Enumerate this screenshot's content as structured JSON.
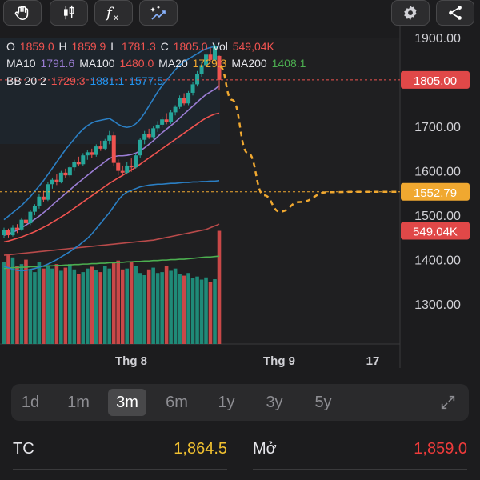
{
  "toolbar": {
    "left_icons": [
      "hand-icon",
      "candlestick-icon",
      "function-icon",
      "magic-draw-icon"
    ],
    "right_icons": [
      "gear-icon",
      "share-icon"
    ]
  },
  "ohlc": {
    "o_label": "O",
    "o_value": "1859.0",
    "h_label": "H",
    "h_value": "1859.9",
    "l_label": "L",
    "l_value": "1781.3",
    "c_label": "C",
    "c_value": "1805.0",
    "vol_label": "Vol",
    "vol_value": "549,04K"
  },
  "ma": {
    "ma10_label": "MA10",
    "ma10_value": "1791.6",
    "ma100_label": "MA100",
    "ma100_value": "1480.0",
    "ma20_label": "MA20",
    "ma20_value": "1729.3",
    "ma200_label": "MA200",
    "ma200_value": "1408.1"
  },
  "bb": {
    "label": "BB 20 2",
    "v1": "1729.3",
    "v2": "1881.1",
    "v3": "1577.5"
  },
  "colors": {
    "up": "#26a69a",
    "down": "#ef5350",
    "ma10": "#9b7dd4",
    "ma100": "#ef5350",
    "ma20": "#f0a830",
    "ma200": "#4caf50",
    "bb_upper": "#2196f3",
    "forecast": "#f0a830"
  },
  "chart_data": {
    "type": "candlestick",
    "y_tick_labels": [
      "1900.00",
      "1800.00",
      "1700.00",
      "1600.00",
      "1500.00",
      "1400.00",
      "1300.00"
    ],
    "y_ticks": [
      1900,
      1800,
      1700,
      1600,
      1500,
      1400,
      1300
    ],
    "ylim": [
      1210,
      1985
    ],
    "x_tick_labels": [
      "Thg 8",
      "Thg 9",
      "17"
    ],
    "price_badge": "1805.00",
    "price_value": 1805,
    "forecast_badge": "1552.79",
    "forecast_value": 1552.79,
    "volume_badge": "549.04K",
    "volume_badge_value": 1465,
    "candles": [
      [
        1455,
        1472,
        1448,
        1466
      ],
      [
        1466,
        1470,
        1450,
        1455
      ],
      [
        1455,
        1478,
        1452,
        1472
      ],
      [
        1472,
        1480,
        1460,
        1468
      ],
      [
        1468,
        1495,
        1465,
        1490
      ],
      [
        1490,
        1500,
        1478,
        1482
      ],
      [
        1482,
        1512,
        1478,
        1508
      ],
      [
        1508,
        1525,
        1500,
        1520
      ],
      [
        1520,
        1548,
        1515,
        1542
      ],
      [
        1542,
        1555,
        1530,
        1535
      ],
      [
        1535,
        1575,
        1532,
        1570
      ],
      [
        1570,
        1585,
        1560,
        1580
      ],
      [
        1580,
        1592,
        1568,
        1575
      ],
      [
        1575,
        1600,
        1572,
        1596
      ],
      [
        1596,
        1605,
        1585,
        1590
      ],
      [
        1590,
        1612,
        1586,
        1608
      ],
      [
        1608,
        1625,
        1600,
        1620
      ],
      [
        1620,
        1632,
        1610,
        1615
      ],
      [
        1615,
        1640,
        1612,
        1635
      ],
      [
        1635,
        1648,
        1625,
        1642
      ],
      [
        1642,
        1650,
        1630,
        1636
      ],
      [
        1636,
        1660,
        1632,
        1655
      ],
      [
        1655,
        1668,
        1645,
        1650
      ],
      [
        1650,
        1672,
        1646,
        1668
      ],
      [
        1668,
        1690,
        1660,
        1680
      ],
      [
        1680,
        1688,
        1612,
        1618
      ],
      [
        1618,
        1626,
        1590,
        1600
      ],
      [
        1600,
        1612,
        1588,
        1596
      ],
      [
        1596,
        1620,
        1592,
        1612
      ],
      [
        1612,
        1628,
        1598,
        1608
      ],
      [
        1608,
        1640,
        1605,
        1635
      ],
      [
        1635,
        1675,
        1630,
        1670
      ],
      [
        1670,
        1690,
        1660,
        1684
      ],
      [
        1684,
        1695,
        1672,
        1676
      ],
      [
        1676,
        1700,
        1672,
        1696
      ],
      [
        1696,
        1712,
        1688,
        1704
      ],
      [
        1704,
        1722,
        1698,
        1716
      ],
      [
        1716,
        1730,
        1705,
        1710
      ],
      [
        1710,
        1738,
        1706,
        1732
      ],
      [
        1732,
        1748,
        1725,
        1744
      ],
      [
        1744,
        1770,
        1740,
        1765
      ],
      [
        1765,
        1775,
        1748,
        1752
      ],
      [
        1752,
        1780,
        1748,
        1776
      ],
      [
        1776,
        1800,
        1770,
        1795
      ],
      [
        1795,
        1825,
        1790,
        1818
      ],
      [
        1818,
        1845,
        1812,
        1838
      ],
      [
        1838,
        1870,
        1832,
        1862
      ],
      [
        1862,
        1878,
        1845,
        1850
      ],
      [
        1850,
        1885,
        1848,
        1880
      ],
      [
        1859,
        1860,
        1781,
        1805
      ]
    ],
    "volume_top": [
      1395,
      1410,
      1405,
      1385,
      1390,
      1400,
      1378,
      1372,
      1395,
      1380,
      1385,
      1380,
      1390,
      1375,
      1382,
      1390,
      1378,
      1368,
      1372,
      1380,
      1384,
      1376,
      1372,
      1385,
      1380,
      1392,
      1398,
      1378,
      1380,
      1396,
      1385,
      1370,
      1365,
      1378,
      1382,
      1370,
      1372,
      1386,
      1375,
      1380,
      1368,
      1364,
      1370,
      1358,
      1362,
      1355,
      1360,
      1350,
      1356,
      1465
    ],
    "ma10": [
      1455,
      1458,
      1462,
      1466,
      1472,
      1478,
      1484,
      1491,
      1498,
      1506,
      1514,
      1523,
      1532,
      1540,
      1549,
      1557,
      1566,
      1574,
      1582,
      1590,
      1598,
      1606,
      1613,
      1621,
      1628,
      1632,
      1634,
      1634,
      1635,
      1637,
      1640,
      1645,
      1652,
      1660,
      1668,
      1677,
      1686,
      1694,
      1702,
      1710,
      1719,
      1728,
      1737,
      1746,
      1755,
      1764,
      1772,
      1778,
      1784,
      1792
    ],
    "ma20": [
      1440,
      1442,
      1445,
      1448,
      1451,
      1455,
      1459,
      1463,
      1468,
      1473,
      1478,
      1484,
      1490,
      1496,
      1502,
      1509,
      1516,
      1523,
      1530,
      1537,
      1544,
      1551,
      1558,
      1565,
      1572,
      1578,
      1584,
      1590,
      1596,
      1602,
      1608,
      1615,
      1622,
      1629,
      1636,
      1643,
      1650,
      1657,
      1664,
      1671,
      1678,
      1685,
      1692,
      1699,
      1706,
      1713,
      1719,
      1724,
      1728,
      1730
    ],
    "bb_upper": [
      1490,
      1498,
      1506,
      1514,
      1522,
      1532,
      1542,
      1554,
      1566,
      1578,
      1592,
      1606,
      1620,
      1634,
      1648,
      1660,
      1672,
      1684,
      1694,
      1702,
      1708,
      1712,
      1714,
      1716,
      1718,
      1712,
      1705,
      1700,
      1698,
      1700,
      1706,
      1716,
      1730,
      1746,
      1762,
      1778,
      1792,
      1804,
      1816,
      1828,
      1838,
      1846,
      1852,
      1858,
      1864,
      1870,
      1875,
      1878,
      1880,
      1881
    ],
    "bb_lower": [
      1385,
      1382,
      1378,
      1376,
      1375,
      1376,
      1378,
      1380,
      1383,
      1386,
      1390,
      1395,
      1400,
      1406,
      1412,
      1418,
      1425,
      1432,
      1440,
      1448,
      1458,
      1470,
      1482,
      1494,
      1506,
      1520,
      1534,
      1545,
      1552,
      1556,
      1560,
      1564,
      1566,
      1568,
      1569,
      1570,
      1570,
      1571,
      1572,
      1572,
      1573,
      1574,
      1574,
      1575,
      1575,
      1576,
      1576,
      1577,
      1577,
      1578
    ],
    "ma100": [
      1410,
      1411,
      1412,
      1413,
      1414,
      1415,
      1416,
      1417,
      1418,
      1419,
      1420,
      1421,
      1422,
      1423,
      1424,
      1425,
      1426,
      1427,
      1428,
      1429,
      1430,
      1431,
      1432,
      1433,
      1434,
      1435,
      1436,
      1437,
      1438,
      1439,
      1440,
      1441,
      1442,
      1443,
      1444,
      1446,
      1448,
      1450,
      1452,
      1454,
      1456,
      1458,
      1460,
      1462,
      1464,
      1466,
      1468,
      1472,
      1476,
      1480
    ],
    "ma200": [
      1380,
      1381,
      1382,
      1382,
      1383,
      1383,
      1384,
      1384,
      1385,
      1385,
      1386,
      1386,
      1387,
      1387,
      1388,
      1388,
      1389,
      1389,
      1390,
      1390,
      1391,
      1391,
      1392,
      1392,
      1393,
      1393,
      1394,
      1394,
      1395,
      1395,
      1396,
      1396,
      1397,
      1397,
      1398,
      1398,
      1399,
      1399,
      1400,
      1400,
      1401,
      1401,
      1402,
      1403,
      1404,
      1405,
      1406,
      1406,
      1407,
      1408
    ]
  },
  "ranges": [
    "1d",
    "1m",
    "3m",
    "6m",
    "1y",
    "3y",
    "5y"
  ],
  "active_range": "3m",
  "stats": {
    "tc_label": "TC",
    "tc_value": "1,864.5",
    "open_label": "Mở",
    "open_value": "1,859.0"
  }
}
